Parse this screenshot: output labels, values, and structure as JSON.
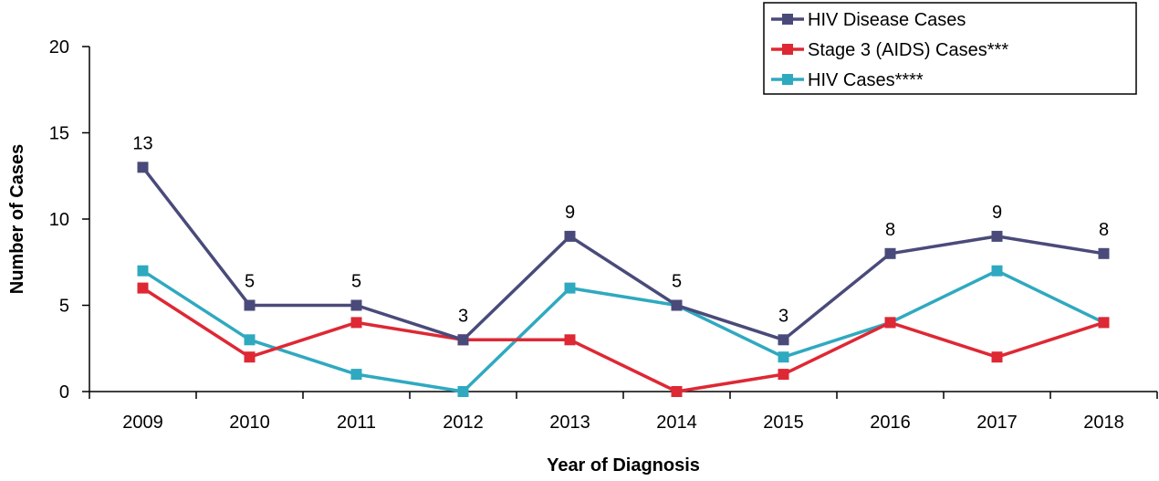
{
  "chart_data": {
    "type": "line",
    "title": "",
    "xlabel": "Year of Diagnosis",
    "ylabel": "Number of Cases",
    "categories": [
      "2009",
      "2010",
      "2011",
      "2012",
      "2013",
      "2014",
      "2015",
      "2016",
      "2017",
      "2018"
    ],
    "ylim": [
      0,
      20
    ],
    "yticks": [
      0,
      5,
      10,
      15,
      20
    ],
    "grid": false,
    "legend_position": "top-right",
    "series": [
      {
        "name": "HIV Disease Cases",
        "color": "#4a4a7a",
        "values": [
          13,
          5,
          5,
          3,
          9,
          5,
          3,
          8,
          9,
          8
        ],
        "data_labels": [
          "13",
          "5",
          "5",
          "3",
          "9",
          "5",
          "3",
          "8",
          "9",
          "8"
        ]
      },
      {
        "name": "Stage 3 (AIDS) Cases***",
        "color": "#de2834",
        "values": [
          6,
          2,
          4,
          3,
          3,
          0,
          1,
          4,
          2,
          4
        ]
      },
      {
        "name": "HIV Cases****",
        "color": "#2fa9c0",
        "values": [
          7,
          3,
          1,
          0,
          6,
          5,
          2,
          4,
          7,
          4
        ]
      }
    ]
  }
}
